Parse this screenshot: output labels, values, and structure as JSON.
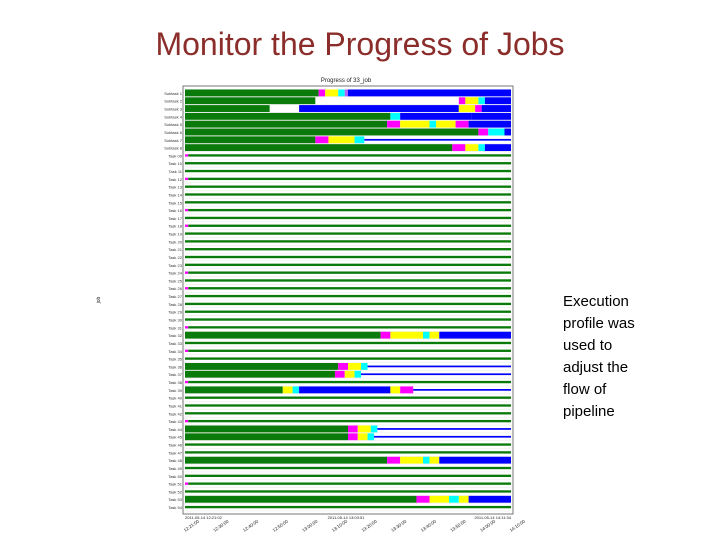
{
  "slide": {
    "title": "Monitor the Progress of Jobs",
    "caption_lines": [
      "Execution",
      "profile was",
      "used to",
      "adjust the",
      "flow of",
      "pipeline"
    ]
  },
  "chart_data": {
    "type": "gantt",
    "title": "Progress of 33_job",
    "ylabel": "job",
    "x_start_label": "2011-05-14 12:21:02",
    "x_mid_label": "2011-05-14 13:03:51",
    "x_end_label": "2011-05-14 14:11:34",
    "x_tick_labels": [
      "12:21:00",
      "12:30:00",
      "12:40:00",
      "12:50:00",
      "13:00:00",
      "13:10:00",
      "13:20:00",
      "13:30:00",
      "13:40:00",
      "13:50:00",
      "14:00:00",
      "14:10:00"
    ],
    "phase_colors": {
      "run": "#0a7a0a",
      "stage_in": "#ff00ff",
      "compute": "#ffff00",
      "wait": "#00ffff",
      "transfer": "#0000ff",
      "stage_out": "#b060ff",
      "marker": "#ffffff"
    },
    "tasks": [
      {
        "label": "Subtask 1",
        "segments": [
          [
            0,
            0.41,
            "run"
          ],
          [
            0.41,
            0.43,
            "stage_in"
          ],
          [
            0.43,
            0.47,
            "compute"
          ],
          [
            0.47,
            0.49,
            "wait"
          ],
          [
            0.49,
            0.5,
            "stage_out"
          ],
          [
            0.5,
            1.0,
            "transfer"
          ]
        ]
      },
      {
        "label": "Subtask 2",
        "segments": [
          [
            0,
            0.4,
            "run"
          ],
          [
            0.4,
            0.84,
            "marker"
          ],
          [
            0.84,
            0.86,
            "stage_in"
          ],
          [
            0.86,
            0.9,
            "compute"
          ],
          [
            0.9,
            0.92,
            "wait"
          ],
          [
            0.92,
            1.0,
            "transfer"
          ]
        ]
      },
      {
        "label": "Subtask 3",
        "segments": [
          [
            0,
            0.26,
            "run"
          ],
          [
            0.26,
            0.35,
            "marker"
          ],
          [
            0.35,
            0.84,
            "transfer"
          ],
          [
            0.84,
            0.89,
            "compute"
          ],
          [
            0.89,
            0.91,
            "stage_in"
          ],
          [
            0.91,
            1.0,
            "transfer"
          ]
        ]
      },
      {
        "label": "Subtask 4",
        "segments": [
          [
            0,
            0.63,
            "run"
          ],
          [
            0.63,
            0.66,
            "wait"
          ],
          [
            0.66,
            0.88,
            "transfer"
          ],
          [
            0.88,
            1.0,
            "transfer"
          ]
        ]
      },
      {
        "label": "Subtask 5",
        "segments": [
          [
            0,
            0.62,
            "run"
          ],
          [
            0.62,
            0.66,
            "stage_in"
          ],
          [
            0.66,
            0.75,
            "compute"
          ],
          [
            0.75,
            0.77,
            "wait"
          ],
          [
            0.77,
            0.83,
            "compute"
          ],
          [
            0.83,
            0.87,
            "stage_in"
          ],
          [
            0.87,
            1.0,
            "transfer"
          ]
        ]
      },
      {
        "label": "Subtask 6",
        "segments": [
          [
            0,
            0.9,
            "run"
          ],
          [
            0.9,
            0.93,
            "stage_in"
          ],
          [
            0.93,
            0.98,
            "wait"
          ],
          [
            0.98,
            1.0,
            "transfer"
          ]
        ]
      },
      {
        "label": "Subtask 7",
        "segments": [
          [
            0,
            0.4,
            "run"
          ],
          [
            0.4,
            0.44,
            "stage_in"
          ],
          [
            0.44,
            0.52,
            "compute"
          ],
          [
            0.52,
            0.55,
            "wait"
          ],
          [
            0.55,
            1.0,
            "transfer"
          ]
        ]
      },
      {
        "label": "Subtask 8",
        "segments": [
          [
            0,
            0.82,
            "run"
          ],
          [
            0.82,
            0.86,
            "stage_in"
          ],
          [
            0.86,
            0.9,
            "compute"
          ],
          [
            0.9,
            0.92,
            "wait"
          ],
          [
            0.92,
            1.0,
            "transfer"
          ]
        ]
      },
      {
        "label": "Task 09",
        "segments": [
          [
            0,
            0.01,
            "stage_in"
          ],
          [
            0.01,
            1.0,
            "run"
          ]
        ]
      },
      {
        "label": "Task 10",
        "segments": [
          [
            0,
            1.0,
            "run"
          ]
        ]
      },
      {
        "label": "Task 11",
        "segments": [
          [
            0,
            1.0,
            "run"
          ]
        ]
      },
      {
        "label": "Task 12",
        "segments": [
          [
            0,
            0.01,
            "stage_in"
          ],
          [
            0.01,
            1.0,
            "run"
          ]
        ]
      },
      {
        "label": "Task 13",
        "segments": [
          [
            0,
            1.0,
            "run"
          ]
        ]
      },
      {
        "label": "Task 14",
        "segments": [
          [
            0,
            1.0,
            "run"
          ]
        ]
      },
      {
        "label": "Task 15",
        "segments": [
          [
            0,
            1.0,
            "run"
          ]
        ]
      },
      {
        "label": "Task 16",
        "segments": [
          [
            0,
            0.01,
            "stage_in"
          ],
          [
            0.01,
            1.0,
            "run"
          ]
        ]
      },
      {
        "label": "Task 17",
        "segments": [
          [
            0,
            1.0,
            "run"
          ]
        ]
      },
      {
        "label": "Task 18",
        "segments": [
          [
            0,
            0.01,
            "stage_in"
          ],
          [
            0.01,
            1.0,
            "run"
          ]
        ]
      },
      {
        "label": "Task 19",
        "segments": [
          [
            0,
            1.0,
            "run"
          ]
        ]
      },
      {
        "label": "Task 20",
        "segments": [
          [
            0,
            1.0,
            "run"
          ]
        ]
      },
      {
        "label": "Task 21",
        "segments": [
          [
            0,
            1.0,
            "run"
          ]
        ]
      },
      {
        "label": "Task 22",
        "segments": [
          [
            0,
            1.0,
            "run"
          ]
        ]
      },
      {
        "label": "Task 23",
        "segments": [
          [
            0,
            1.0,
            "run"
          ]
        ]
      },
      {
        "label": "Task 24",
        "segments": [
          [
            0,
            0.01,
            "stage_in"
          ],
          [
            0.01,
            1.0,
            "run"
          ]
        ]
      },
      {
        "label": "Task 25",
        "segments": [
          [
            0,
            1.0,
            "run"
          ]
        ]
      },
      {
        "label": "Task 26",
        "segments": [
          [
            0,
            0.01,
            "stage_in"
          ],
          [
            0.01,
            1.0,
            "run"
          ]
        ]
      },
      {
        "label": "Task 27",
        "segments": [
          [
            0,
            1.0,
            "run"
          ]
        ]
      },
      {
        "label": "Task 28",
        "segments": [
          [
            0,
            1.0,
            "run"
          ]
        ]
      },
      {
        "label": "Task 29",
        "segments": [
          [
            0,
            1.0,
            "run"
          ]
        ]
      },
      {
        "label": "Task 30",
        "segments": [
          [
            0,
            1.0,
            "run"
          ]
        ]
      },
      {
        "label": "Task 31",
        "segments": [
          [
            0,
            0.01,
            "stage_in"
          ],
          [
            0.01,
            1.0,
            "run"
          ]
        ]
      },
      {
        "label": "Task 32",
        "segments": [
          [
            0,
            0.6,
            "run"
          ],
          [
            0.6,
            0.63,
            "stage_in"
          ],
          [
            0.63,
            0.73,
            "compute"
          ],
          [
            0.73,
            0.75,
            "wait"
          ],
          [
            0.75,
            0.78,
            "compute"
          ],
          [
            0.78,
            1.0,
            "transfer"
          ]
        ]
      },
      {
        "label": "Task 33",
        "segments": [
          [
            0,
            1.0,
            "run"
          ]
        ]
      },
      {
        "label": "Task 34",
        "segments": [
          [
            0,
            0.01,
            "stage_in"
          ],
          [
            0.01,
            1.0,
            "run"
          ]
        ]
      },
      {
        "label": "Task 35",
        "segments": [
          [
            0,
            1.0,
            "run"
          ]
        ]
      },
      {
        "label": "Task 36",
        "segments": [
          [
            0,
            0.47,
            "run"
          ],
          [
            0.47,
            0.5,
            "stage_in"
          ],
          [
            0.5,
            0.54,
            "compute"
          ],
          [
            0.54,
            0.56,
            "wait"
          ],
          [
            0.56,
            1.0,
            "transfer"
          ]
        ]
      },
      {
        "label": "Task 37",
        "segments": [
          [
            0,
            0.46,
            "run"
          ],
          [
            0.46,
            0.49,
            "stage_in"
          ],
          [
            0.49,
            0.52,
            "compute"
          ],
          [
            0.52,
            0.54,
            "wait"
          ],
          [
            0.54,
            1.0,
            "transfer"
          ]
        ]
      },
      {
        "label": "Task 38",
        "segments": [
          [
            0,
            0.01,
            "stage_in"
          ],
          [
            0.01,
            1.0,
            "run"
          ]
        ]
      },
      {
        "label": "Task 39",
        "segments": [
          [
            0,
            0.3,
            "run"
          ],
          [
            0.3,
            0.33,
            "compute"
          ],
          [
            0.33,
            0.35,
            "wait"
          ],
          [
            0.35,
            0.63,
            "transfer"
          ],
          [
            0.63,
            0.66,
            "compute"
          ],
          [
            0.66,
            0.7,
            "stage_in"
          ],
          [
            0.7,
            1.0,
            "transfer"
          ]
        ]
      },
      {
        "label": "Task 40",
        "segments": [
          [
            0,
            1.0,
            "run"
          ]
        ]
      },
      {
        "label": "Task 41",
        "segments": [
          [
            0,
            1.0,
            "run"
          ]
        ]
      },
      {
        "label": "Task 42",
        "segments": [
          [
            0,
            1.0,
            "run"
          ]
        ]
      },
      {
        "label": "Task 43",
        "segments": [
          [
            0,
            0.01,
            "stage_in"
          ],
          [
            0.01,
            1.0,
            "run"
          ]
        ]
      },
      {
        "label": "Task 44",
        "segments": [
          [
            0,
            0.5,
            "run"
          ],
          [
            0.5,
            0.53,
            "stage_in"
          ],
          [
            0.53,
            0.57,
            "compute"
          ],
          [
            0.57,
            0.59,
            "wait"
          ],
          [
            0.59,
            1.0,
            "transfer"
          ]
        ]
      },
      {
        "label": "Task 45",
        "segments": [
          [
            0,
            0.5,
            "run"
          ],
          [
            0.5,
            0.53,
            "stage_in"
          ],
          [
            0.53,
            0.56,
            "compute"
          ],
          [
            0.56,
            0.58,
            "wait"
          ],
          [
            0.58,
            1.0,
            "transfer"
          ]
        ]
      },
      {
        "label": "Task 46",
        "segments": [
          [
            0,
            1.0,
            "run"
          ]
        ]
      },
      {
        "label": "Task 47",
        "segments": [
          [
            0,
            1.0,
            "run"
          ]
        ]
      },
      {
        "label": "Task 48",
        "segments": [
          [
            0,
            0.62,
            "run"
          ],
          [
            0.62,
            0.66,
            "stage_in"
          ],
          [
            0.66,
            0.73,
            "compute"
          ],
          [
            0.73,
            0.75,
            "wait"
          ],
          [
            0.75,
            0.78,
            "compute"
          ],
          [
            0.78,
            1.0,
            "transfer"
          ]
        ]
      },
      {
        "label": "Task 49",
        "segments": [
          [
            0,
            1.0,
            "run"
          ]
        ]
      },
      {
        "label": "Task 50",
        "segments": [
          [
            0,
            1.0,
            "run"
          ]
        ]
      },
      {
        "label": "Task 51",
        "segments": [
          [
            0,
            0.01,
            "stage_in"
          ],
          [
            0.01,
            1.0,
            "run"
          ]
        ]
      },
      {
        "label": "Task 52",
        "segments": [
          [
            0,
            1.0,
            "run"
          ]
        ]
      },
      {
        "label": "Task 53",
        "segments": [
          [
            0,
            0.71,
            "run"
          ],
          [
            0.71,
            0.75,
            "stage_in"
          ],
          [
            0.75,
            0.81,
            "compute"
          ],
          [
            0.81,
            0.84,
            "wait"
          ],
          [
            0.84,
            0.87,
            "compute"
          ],
          [
            0.87,
            1.0,
            "transfer"
          ]
        ]
      },
      {
        "label": "Task 54",
        "segments": [
          [
            0,
            1.0,
            "run"
          ]
        ]
      }
    ]
  }
}
